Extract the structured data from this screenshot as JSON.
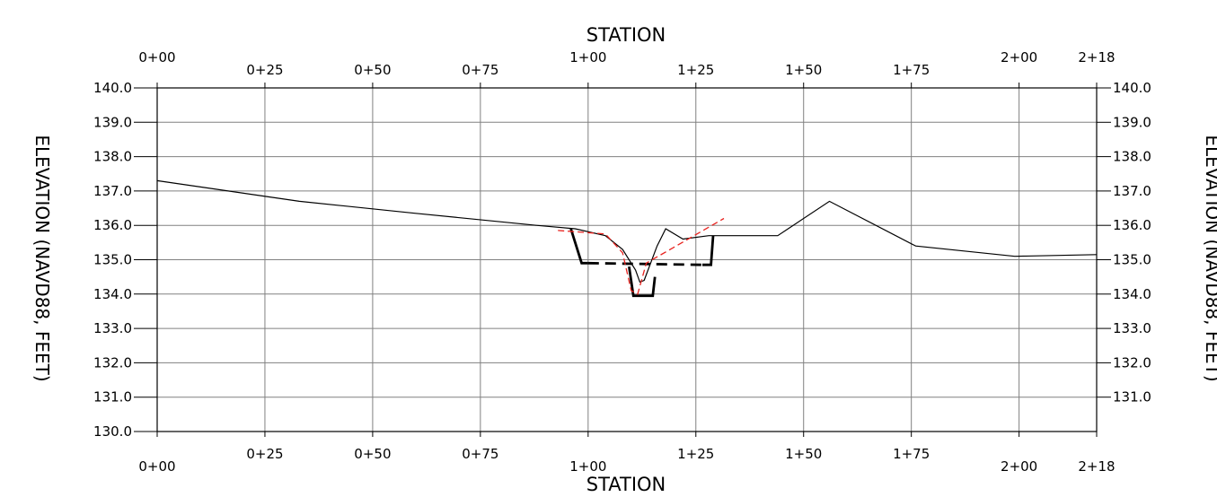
{
  "chart_data": {
    "type": "line",
    "title": "",
    "xlabel": "STATION",
    "ylabel_left": "ELEVATION (NAVD88, FEET)",
    "ylabel_right": "ELEVATION (NAVD88, FEET)",
    "xlim": [
      0,
      218
    ],
    "ylim": [
      130,
      140
    ],
    "x_ticks": [
      {
        "value": 0,
        "label": "0+00"
      },
      {
        "value": 25,
        "label": "0+25"
      },
      {
        "value": 50,
        "label": "0+50"
      },
      {
        "value": 75,
        "label": "0+75"
      },
      {
        "value": 100,
        "label": "1+00"
      },
      {
        "value": 125,
        "label": "1+25"
      },
      {
        "value": 150,
        "label": "1+50"
      },
      {
        "value": 175,
        "label": "1+75"
      },
      {
        "value": 200,
        "label": "2+00"
      },
      {
        "value": 218,
        "label": "2+18"
      }
    ],
    "y_ticks_left": [
      {
        "value": 140,
        "label": "140.0"
      },
      {
        "value": 139,
        "label": "139.0"
      },
      {
        "value": 138,
        "label": "138.0"
      },
      {
        "value": 137,
        "label": "137.0"
      },
      {
        "value": 136,
        "label": "136.0"
      },
      {
        "value": 135,
        "label": "135.0"
      },
      {
        "value": 134,
        "label": "134.0"
      },
      {
        "value": 133,
        "label": "133.0"
      },
      {
        "value": 132,
        "label": "132.0"
      },
      {
        "value": 131,
        "label": "131.0"
      },
      {
        "value": 130,
        "label": "130.0"
      }
    ],
    "y_ticks_right": [
      {
        "value": 140,
        "label": "140.0"
      },
      {
        "value": 139,
        "label": "139.0"
      },
      {
        "value": 138,
        "label": "138.0"
      },
      {
        "value": 137,
        "label": "137.0"
      },
      {
        "value": 136,
        "label": "136.0"
      },
      {
        "value": 135,
        "label": "135.0"
      },
      {
        "value": 134,
        "label": "134.0"
      },
      {
        "value": 133,
        "label": "133.0"
      },
      {
        "value": 132,
        "label": "132.0"
      },
      {
        "value": 131,
        "label": "131.0"
      }
    ],
    "grid": true,
    "series": [
      {
        "style": "solid-thin",
        "color": "#000000",
        "x": [
          0,
          33,
          60,
          88,
          97,
          104,
          108,
          111,
          112,
          113,
          116,
          118,
          122,
          128,
          144,
          156,
          176,
          199,
          218
        ],
        "y": [
          137.3,
          136.7,
          136.35,
          136.0,
          135.9,
          135.7,
          135.3,
          134.7,
          134.35,
          134.4,
          135.4,
          135.9,
          135.6,
          135.7,
          135.7,
          136.7,
          135.4,
          135.1,
          135.15
        ]
      },
      {
        "style": "solid-thick",
        "color": "#000000",
        "x": [
          96,
          98.5,
          100
        ],
        "y": [
          135.9,
          134.9,
          134.9
        ]
      },
      {
        "style": "dashed-thick",
        "color": "#000000",
        "x": [
          100,
          126.5
        ],
        "y": [
          134.9,
          134.85
        ]
      },
      {
        "style": "solid-thick",
        "color": "#000000",
        "x": [
          126.5,
          128.5,
          129
        ],
        "y": [
          134.85,
          134.85,
          135.7
        ]
      },
      {
        "style": "solid-thick",
        "color": "#000000",
        "x": [
          109.5,
          110.5,
          115,
          115.5
        ],
        "y": [
          134.8,
          133.95,
          133.95,
          134.5
        ]
      },
      {
        "style": "dashed-thin",
        "color": "#e8231f",
        "x": [
          93,
          104,
          108,
          110,
          111.5,
          113.5,
          131.5
        ],
        "y": [
          135.85,
          135.75,
          135.2,
          134.1,
          134.0,
          134.9,
          136.2
        ]
      }
    ]
  }
}
